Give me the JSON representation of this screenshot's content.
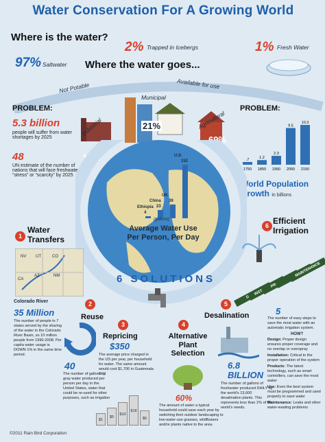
{
  "header": {
    "title": "Water Conservation For A Growing World"
  },
  "where": {
    "question": "Where is the water?",
    "icebergs_pct": "2%",
    "icebergs_label": "Trapped in Icebergs",
    "fresh_pct": "1%",
    "fresh_label": "Fresh Water",
    "salt_pct": "97%",
    "salt_label": "Saltwater"
  },
  "goes": {
    "title": "Where the water goes...",
    "not_potable": "Not Potable",
    "available": "Available for use",
    "municipal": "Municipal",
    "industrial": "Industrial",
    "agricultural": "Agricultural",
    "municipal_pct": "21%",
    "industrial_pct": "10%",
    "agricultural_pct": "69%"
  },
  "problem_left": {
    "heading": "PROBLEM:",
    "big1": "5.3 billion",
    "text1": "people will suffer from water shortages by 2025",
    "big2": "48",
    "text2": "UN estimate of the number of nations that will face freshwater “stress” or “scarcity” by 2025"
  },
  "problem_right": {
    "heading": "PROBLEM:",
    "title": "World Population Growth",
    "unit": "in billions"
  },
  "chart_data": {
    "type": "bar",
    "categories": [
      "1750",
      "1850",
      "1950",
      "2050",
      "2150"
    ],
    "values": [
      0.7,
      1.2,
      2.3,
      9.5,
      10.3
    ],
    "value_labels": [
      ".7",
      "1.2",
      "2.3",
      "9.5",
      "10.3"
    ]
  },
  "water_use": {
    "title_line1": "Average Water Use",
    "title_line2": "Per Person, Per Day",
    "unit": "(gallons)",
    "countries": [
      {
        "name": "Ethiopia",
        "value": 4,
        "label": "4"
      },
      {
        "name": "China",
        "value": 23,
        "label": "23"
      },
      {
        "name": "UK",
        "value": 39,
        "label": "39"
      },
      {
        "name": "U.S.",
        "value": 152,
        "label": "152"
      }
    ]
  },
  "solutions": {
    "ring_text": "6 SOLUTIONS",
    "s1": {
      "num": "1",
      "title": "Water Transfers",
      "map_labels": [
        "NV",
        "UT",
        "CO",
        "AZ",
        "NM",
        "CA"
      ],
      "river": "Colorado River",
      "big": "35 Million",
      "text": "The number of people in 7 states served by the sharing of the water in the Colorado River Basin, so 10 million people from 1990-2008. Per capita water usage is DOWN 1% in the same time period."
    },
    "s2": {
      "num": "2",
      "title": "Reuse",
      "big": "40",
      "text": "The number of gallons of gray water produced per person per day in the United States, water that could be re-used for other purposes, such as irrigation"
    },
    "s3": {
      "num": "3",
      "title": "Repricing",
      "big": "$350",
      "text": "The average price charged in the US per year, per household for water. The same amount would cost $1,700 in Guatemala City.",
      "can_labels": [
        "$1",
        "$5",
        "$10",
        "$18",
        "$6"
      ]
    },
    "s4": {
      "num": "4",
      "title_line1": "Alternative",
      "title_line2": "Plant",
      "title_line3": "Selection",
      "big": "60%",
      "text": "The amount of water a typical household could save each year by switching their outdoor landscaping to low-water-use grasses, wildflowers and/or plants native to the area."
    },
    "s5": {
      "num": "5",
      "title": "Desalination",
      "big1": "6.8",
      "big2": "BILLION",
      "text": "The number of gallons of freshwater produced DAILY by the world’s 13,600 desalination plants. This represents less than 1% of the world’s needs."
    },
    "s6": {
      "num": "6",
      "title_line1": "Efficient",
      "title_line2": "Irrigation",
      "steps": [
        "DESIGN",
        "INSTALLATION",
        "PRODUCTS",
        "USE",
        "MAINTENANCE"
      ],
      "big": "5",
      "intro": "The number of easy steps to save the most water with an automatic irrigation system.",
      "how": "HOW?",
      "items": [
        {
          "k": "Design:",
          "v": "Proper design ensures proper coverage and no overlap or overspray"
        },
        {
          "k": "Installation:",
          "v": "Critical to the proper operation of the system"
        },
        {
          "k": "Products:",
          "v": "The latest technology, such as smart controllers, can save the most water"
        },
        {
          "k": "Use:",
          "v": "Even the best system must be programmed and used properly to save water"
        },
        {
          "k": "Maintenance:",
          "v": "Leaks and other water-wasting problems"
        }
      ]
    }
  },
  "footer": {
    "copyright": "©2011 Rain Bird Corporation"
  },
  "colors": {
    "accent_red": "#d8402b",
    "accent_blue": "#1f63b2",
    "background": "#dfeaf3"
  }
}
